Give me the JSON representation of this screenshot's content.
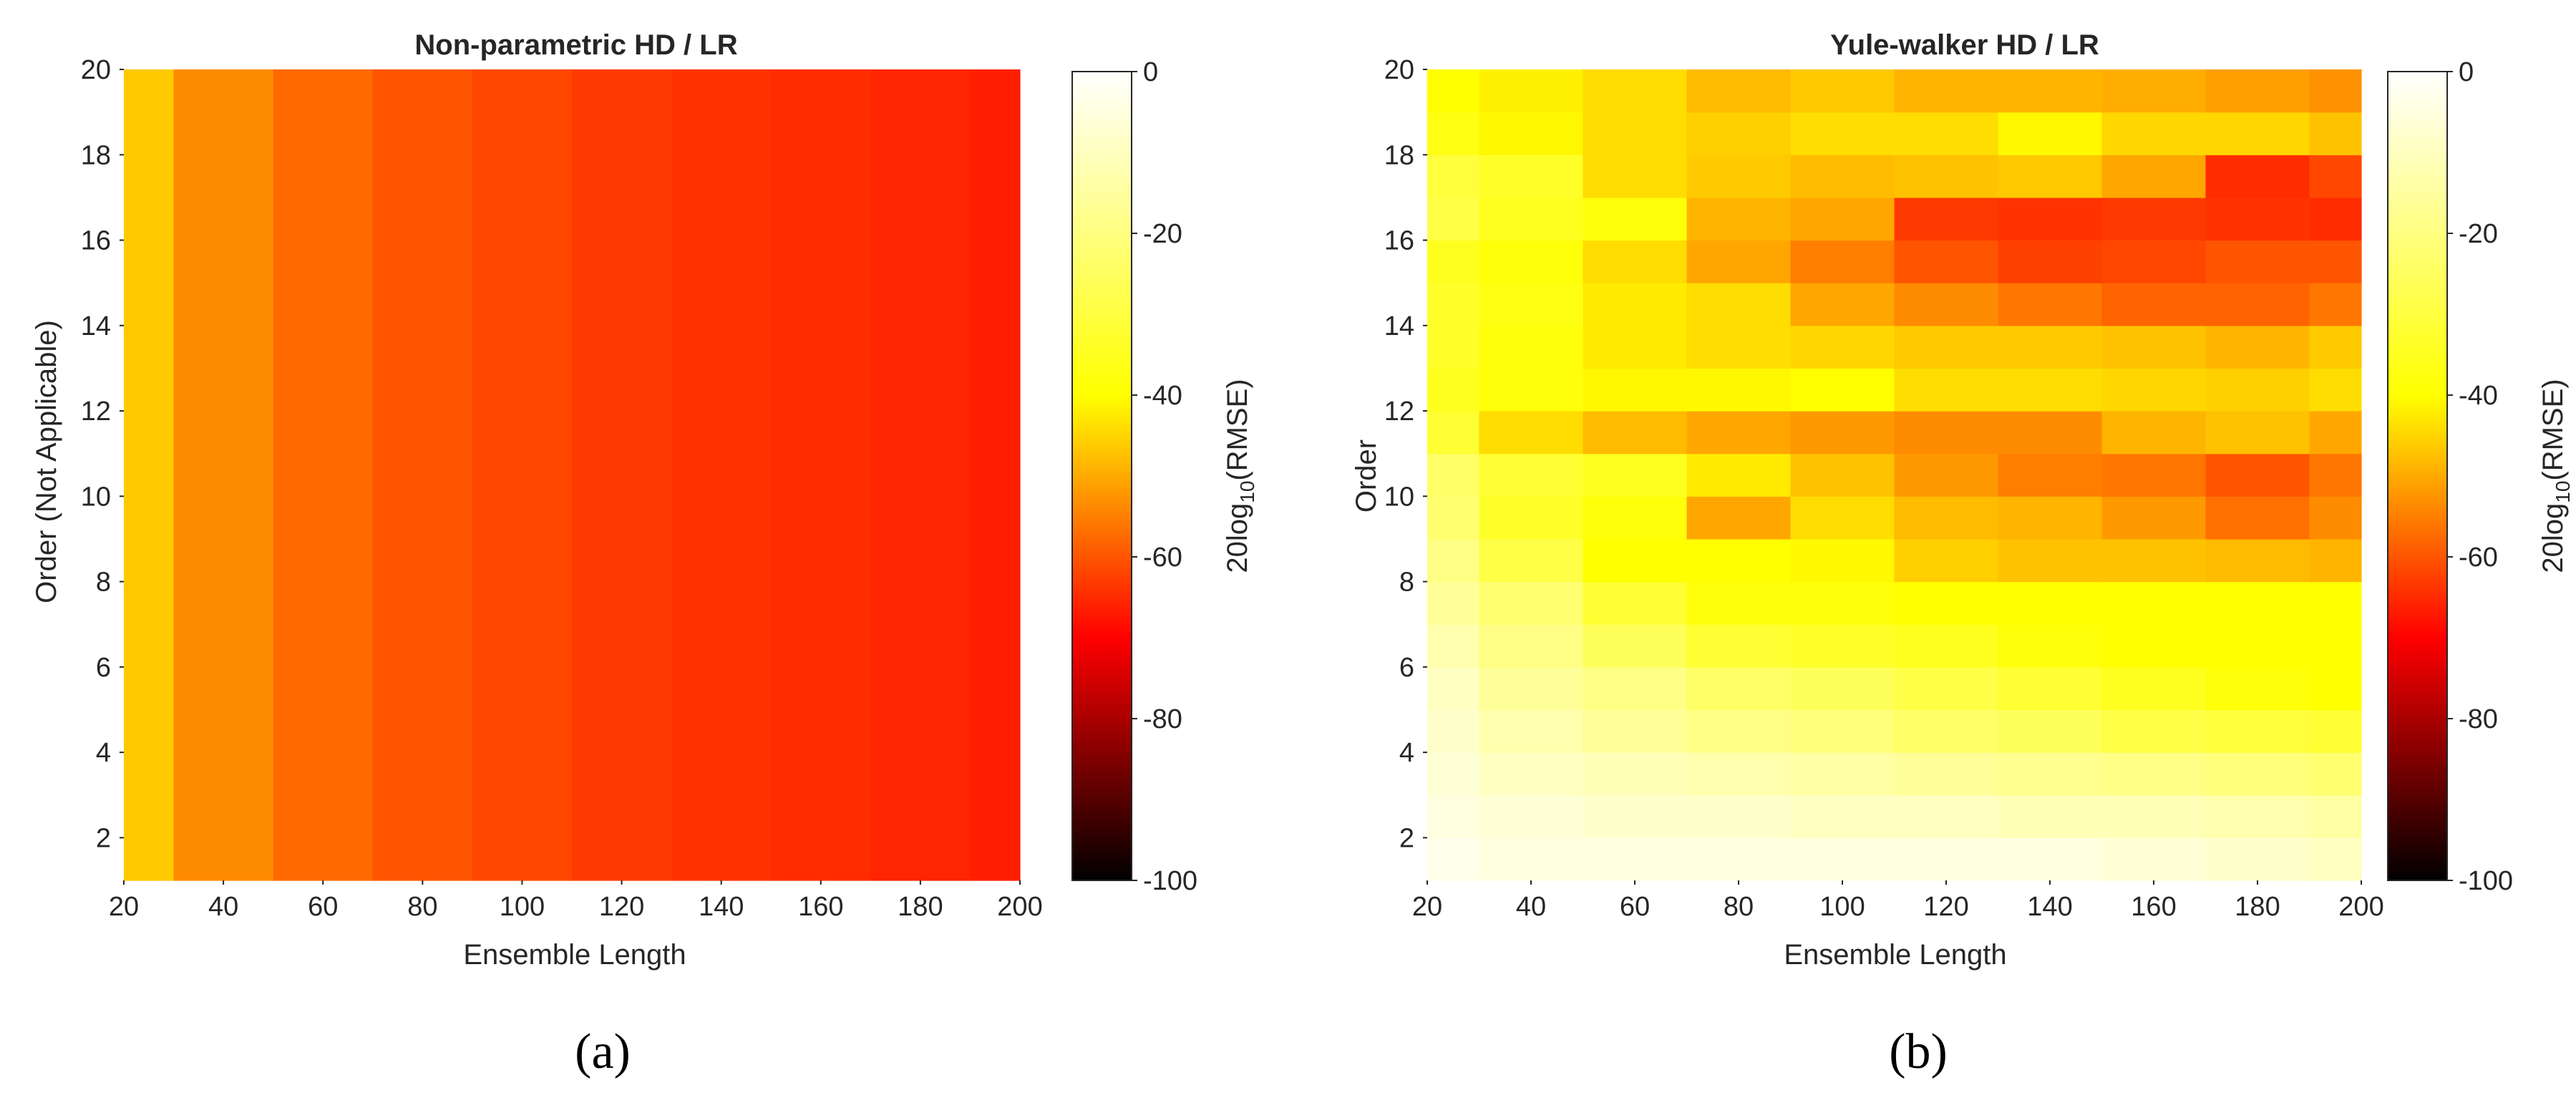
{
  "figure": {
    "panel_labels": [
      "(a)",
      "(b)"
    ]
  },
  "chart_data": [
    {
      "type": "heatmap",
      "title": "Non-parametric HD / LR",
      "xlabel": "Ensemble Length",
      "ylabel": "Order (Not Applicable)",
      "colorbar_label": "20log10(RMSE)",
      "colormap": "hot",
      "clim": [
        -100,
        0
      ],
      "colorbar_ticks": [
        0,
        -20,
        -40,
        -60,
        -80,
        -100
      ],
      "x_edges": [
        20,
        30,
        50,
        70,
        90,
        110,
        130,
        150,
        170,
        190,
        200
      ],
      "y_edges": [
        1,
        20
      ],
      "x_ticks": [
        20,
        40,
        60,
        80,
        100,
        120,
        140,
        160,
        180,
        200
      ],
      "y_ticks": [
        2,
        4,
        6,
        8,
        10,
        12,
        14,
        16,
        18,
        20
      ],
      "x_range": [
        20,
        200
      ],
      "y_range": [
        1,
        20
      ],
      "values": [
        [
          -33,
          -42,
          -47,
          -50,
          -52,
          -54,
          -55,
          -56,
          -57,
          -58
        ]
      ]
    },
    {
      "type": "heatmap",
      "title": "Yule-walker HD / LR",
      "xlabel": "Ensemble Length",
      "ylabel": "Order",
      "colorbar_label": "20log10(RMSE)",
      "colormap": "hot",
      "clim": [
        -100,
        0
      ],
      "colorbar_ticks": [
        0,
        -20,
        -40,
        -60,
        -80,
        -100
      ],
      "x_edges": [
        20,
        30,
        50,
        70,
        90,
        110,
        130,
        150,
        170,
        190,
        200
      ],
      "y_edges": [
        1,
        2,
        3,
        4,
        5,
        6,
        7,
        8,
        9,
        10,
        11,
        12,
        13,
        14,
        15,
        16,
        17,
        18,
        19,
        20
      ],
      "x_ticks": [
        20,
        40,
        60,
        80,
        100,
        120,
        140,
        160,
        180,
        200
      ],
      "y_ticks": [
        2,
        4,
        6,
        8,
        10,
        12,
        14,
        16,
        18,
        20
      ],
      "x_range": [
        20,
        200
      ],
      "y_range": [
        1,
        20
      ],
      "values": [
        [
          -2,
          -3,
          -3,
          -3,
          -3,
          -3,
          -3,
          -4,
          -5,
          -6
        ],
        [
          -3,
          -4,
          -5,
          -5,
          -6,
          -6,
          -7,
          -7,
          -8,
          -9
        ],
        [
          -4,
          -6,
          -7,
          -8,
          -9,
          -10,
          -11,
          -12,
          -13,
          -14
        ],
        [
          -5,
          -8,
          -10,
          -12,
          -13,
          -15,
          -16,
          -18,
          -19,
          -20
        ],
        [
          -6,
          -10,
          -12,
          -15,
          -16,
          -18,
          -20,
          -22,
          -24,
          -25
        ],
        [
          -8,
          -12,
          -16,
          -20,
          -21,
          -22,
          -24,
          -25,
          -25,
          -25
        ],
        [
          -10,
          -14,
          -20,
          -24,
          -24,
          -25,
          -25,
          -25,
          -25,
          -25
        ],
        [
          -12,
          -18,
          -25,
          -25,
          -26,
          -32,
          -34,
          -34,
          -35,
          -36
        ],
        [
          -14,
          -21,
          -24,
          -38,
          -30,
          -35,
          -36,
          -40,
          -46,
          -42
        ],
        [
          -15,
          -20,
          -22,
          -28,
          -34,
          -40,
          -44,
          -45,
          -50,
          -45
        ],
        [
          -20,
          -30,
          -35,
          -38,
          -40,
          -42,
          -42,
          -36,
          -34,
          -38
        ],
        [
          -22,
          -24,
          -26,
          -26,
          -25,
          -30,
          -30,
          -31,
          -32,
          -30
        ],
        [
          -21,
          -24,
          -28,
          -30,
          -31,
          -33,
          -33,
          -34,
          -36,
          -33
        ],
        [
          -21,
          -23,
          -28,
          -30,
          -38,
          -42,
          -45,
          -48,
          -48,
          -45
        ],
        [
          -22,
          -24,
          -30,
          -38,
          -44,
          -50,
          -53,
          -52,
          -50,
          -50
        ],
        [
          -18,
          -22,
          -24,
          -36,
          -38,
          -54,
          -55,
          -54,
          -55,
          -56
        ],
        [
          -19,
          -21,
          -30,
          -33,
          -35,
          -34,
          -33,
          -38,
          -56,
          -52
        ],
        [
          -23,
          -26,
          -30,
          -32,
          -30,
          -30,
          -26,
          -31,
          -31,
          -34
        ],
        [
          -25,
          -27,
          -30,
          -35,
          -33,
          -36,
          -36,
          -37,
          -39,
          -41
        ]
      ]
    }
  ]
}
